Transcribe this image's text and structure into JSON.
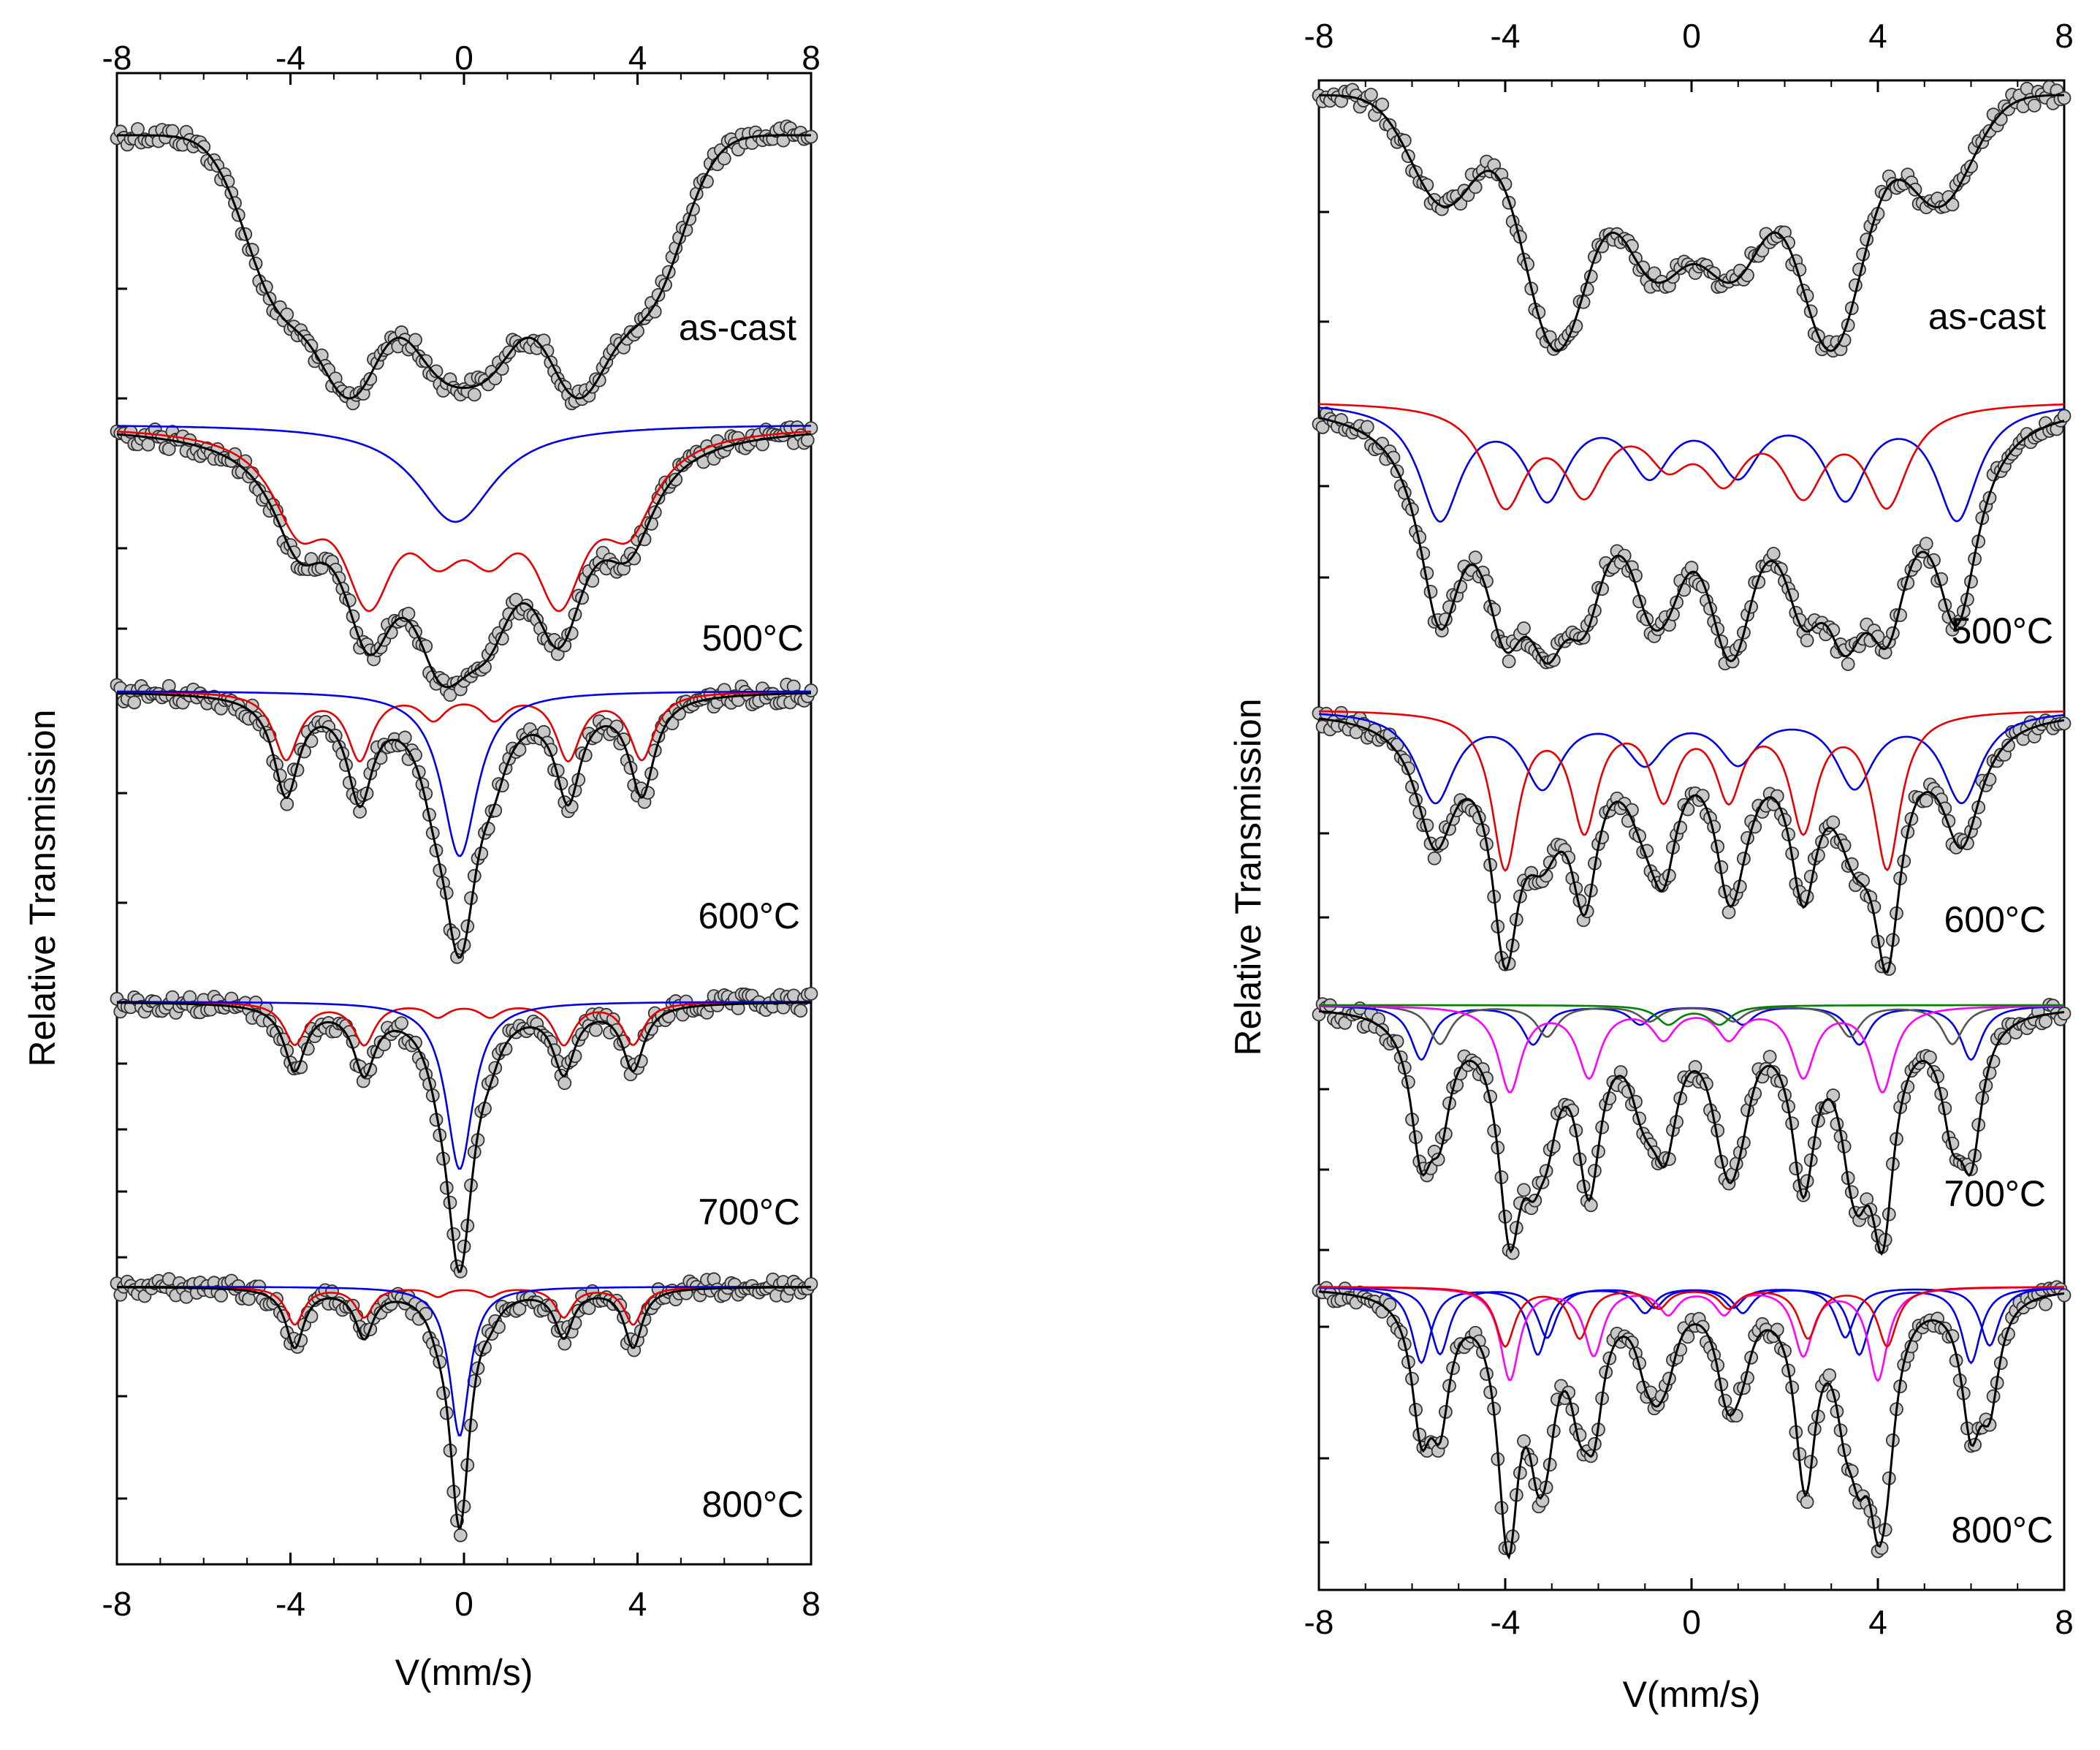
{
  "chart_data": [
    {
      "type": "scatter",
      "panel": "left",
      "xlabel": "V(mm/s)",
      "ylabel": "Relative Transmission",
      "xlim": [
        -8,
        8
      ],
      "xticks": [
        -8,
        -4,
        0,
        4,
        8
      ],
      "grid": false,
      "series_colors": {
        "data_points": "#c8c8c8",
        "total_fit": "#000000",
        "sextet": "#e60000",
        "singlet_doublet": "#0000e6"
      },
      "spectra": [
        {
          "label": "as-cast",
          "components": [
            {
              "name": "broad-hyperfine",
              "shape": "gaussian6",
              "color": "#000000",
              "positions": [
                -4.3,
                -2.6,
                -0.7,
                0.7,
                2.6,
                4.3
              ],
              "amplitudes": [
                0.45,
                0.7,
                0.55,
                0.55,
                0.7,
                0.45
              ],
              "width": 1.1
            }
          ],
          "include_total": false
        },
        {
          "label": "500°C",
          "components": [
            {
              "name": "sextet-red",
              "shape": "lorentz",
              "color": "#e60000",
              "positions": [
                -3.8,
                -2.2,
                -0.6,
                0.6,
                2.2,
                3.8
              ],
              "amplitudes": [
                0.5,
                0.9,
                0.5,
                0.5,
                0.9,
                0.5
              ],
              "width": 0.75
            },
            {
              "name": "broad-blue",
              "shape": "lorentz",
              "color": "#0000e6",
              "positions": [
                -0.2
              ],
              "amplitudes": [
                0.6
              ],
              "width": 1.1
            }
          ],
          "include_total": true
        },
        {
          "label": "600°C",
          "components": [
            {
              "name": "sextet-red",
              "shape": "lorentz",
              "color": "#e60000",
              "positions": [
                -4.1,
                -2.4,
                -0.7,
                0.7,
                2.4,
                4.1
              ],
              "amplitudes": [
                0.4,
                0.4,
                0.15,
                0.15,
                0.4,
                0.4
              ],
              "width": 0.35
            },
            {
              "name": "singlet-blue",
              "shape": "lorentz",
              "color": "#0000e6",
              "positions": [
                -0.1
              ],
              "amplitudes": [
                1.0
              ],
              "width": 0.5
            }
          ],
          "include_total": true
        },
        {
          "label": "700°C",
          "components": [
            {
              "name": "sextet-red",
              "shape": "lorentz",
              "color": "#e60000",
              "positions": [
                -3.9,
                -2.3,
                -0.6,
                0.6,
                2.3,
                3.9
              ],
              "amplitudes": [
                0.25,
                0.25,
                0.08,
                0.08,
                0.25,
                0.25
              ],
              "width": 0.3
            },
            {
              "name": "singlet-blue",
              "shape": "lorentz",
              "color": "#0000e6",
              "positions": [
                -0.1
              ],
              "amplitudes": [
                1.0
              ],
              "width": 0.38
            }
          ],
          "include_total": true
        },
        {
          "label": "800°C",
          "components": [
            {
              "name": "sextet-red",
              "shape": "lorentz",
              "color": "#e60000",
              "positions": [
                -3.9,
                -2.3,
                -0.6,
                0.6,
                2.3,
                3.9
              ],
              "amplitudes": [
                0.25,
                0.2,
                0.06,
                0.06,
                0.2,
                0.25
              ],
              "width": 0.25
            },
            {
              "name": "singlet-blue",
              "shape": "lorentz",
              "color": "#0000e6",
              "positions": [
                -0.1
              ],
              "amplitudes": [
                1.0
              ],
              "width": 0.28
            }
          ],
          "include_total": true
        }
      ]
    },
    {
      "type": "scatter",
      "panel": "right",
      "xlabel": "V(mm/s)",
      "ylabel": "Relative Transmission",
      "xlim": [
        -8,
        8
      ],
      "xticks": [
        -8,
        -4,
        0,
        4,
        8
      ],
      "grid": false,
      "series_colors": {
        "data_points": "#c8c8c8",
        "total_fit": "#000000",
        "sextet_a": "#e60000",
        "sextet_b": "#0000e6",
        "sextet_c": "#ff00ff",
        "sextet_d": "#555555",
        "doublet": "#008000"
      },
      "spectra": [
        {
          "label": "as-cast",
          "components": [
            {
              "name": "broad-hyperfine",
              "shape": "gaussian6",
              "color": "#000000",
              "positions": [
                -5.3,
                -2.9,
                -0.8,
                0.9,
                3.0,
                5.3
              ],
              "amplitudes": [
                0.35,
                0.8,
                0.55,
                0.55,
                0.8,
                0.35
              ],
              "width": 1.0
            }
          ],
          "include_total": false
        },
        {
          "label": "500°C",
          "components": [
            {
              "name": "sextet-blue",
              "shape": "lorentz",
              "color": "#0000e6",
              "positions": [
                -5.4,
                -3.1,
                -0.9,
                1.0,
                3.3,
                5.7
              ],
              "amplitudes": [
                0.7,
                0.55,
                0.4,
                0.4,
                0.55,
                0.7
              ],
              "width": 0.55
            },
            {
              "name": "sextet-red",
              "shape": "lorentz",
              "color": "#e60000",
              "positions": [
                -4.0,
                -2.3,
                0.7,
                2.4,
                4.2,
                -0.5
              ],
              "amplitudes": [
                0.6,
                0.5,
                0.4,
                0.5,
                0.6,
                0.3
              ],
              "width": 0.55
            }
          ],
          "include_total": true
        },
        {
          "label": "600°C",
          "components": [
            {
              "name": "sextet-blue",
              "shape": "lorentz",
              "color": "#0000e6",
              "positions": [
                -5.5,
                -3.2,
                -1.0,
                1.0,
                3.5,
                5.8
              ],
              "amplitudes": [
                0.55,
                0.45,
                0.3,
                0.3,
                0.45,
                0.55
              ],
              "width": 0.5
            },
            {
              "name": "sextet-red",
              "shape": "lorentz",
              "color": "#e60000",
              "positions": [
                -4.0,
                -2.3,
                -0.6,
                0.8,
                2.4,
                4.2
              ],
              "amplitudes": [
                0.95,
                0.7,
                0.5,
                0.5,
                0.7,
                0.95
              ],
              "width": 0.35
            }
          ],
          "include_total": true
        },
        {
          "label": "700°C",
          "components": [
            {
              "name": "sextet-blue",
              "shape": "lorentz",
              "color": "#0000e6",
              "positions": [
                -5.8,
                -3.4,
                -1.1,
                1.1,
                3.6,
                6.0
              ],
              "amplitudes": [
                0.35,
                0.25,
                0.12,
                0.12,
                0.25,
                0.35
              ],
              "width": 0.28
            },
            {
              "name": "sextet-grey",
              "shape": "lorentz",
              "color": "#555555",
              "positions": [
                -5.4,
                -3.1,
                -0.9,
                0.9,
                3.4,
                5.6
              ],
              "amplitudes": [
                0.25,
                0.2,
                0.1,
                0.1,
                0.2,
                0.25
              ],
              "width": 0.28
            },
            {
              "name": "sextet-magenta",
              "shape": "lorentz",
              "color": "#ff00ff",
              "positions": [
                -3.9,
                -2.2,
                -0.6,
                0.8,
                2.4,
                4.1
              ],
              "amplitudes": [
                0.55,
                0.45,
                0.2,
                0.2,
                0.45,
                0.55
              ],
              "width": 0.3
            },
            {
              "name": "doublet-green",
              "shape": "lorentz",
              "color": "#008000",
              "positions": [
                -0.5,
                0.6
              ],
              "amplitudes": [
                0.12,
                0.12
              ],
              "width": 0.3
            }
          ],
          "include_total": true
        },
        {
          "label": "800°C",
          "components": [
            {
              "name": "sextet-blue",
              "shape": "lorentz",
              "color": "#0000e6",
              "positions": [
                -5.8,
                -3.3,
                -1.0,
                1.1,
                3.6,
                6.0
              ],
              "amplitudes": [
                0.45,
                0.4,
                0.15,
                0.15,
                0.4,
                0.45
              ],
              "width": 0.25
            },
            {
              "name": "sextet-blue-2",
              "shape": "lorentz",
              "color": "#0000e6",
              "positions": [
                -5.4,
                -3.1,
                -0.8,
                0.9,
                3.3,
                6.4
              ],
              "amplitudes": [
                0.4,
                0.3,
                0.12,
                0.12,
                0.3,
                0.35
              ],
              "width": 0.25
            },
            {
              "name": "sextet-magenta",
              "shape": "lorentz",
              "color": "#ff00ff",
              "positions": [
                -3.9,
                -2.1,
                -0.5,
                0.7,
                2.4,
                4.0
              ],
              "amplitudes": [
                0.55,
                0.4,
                0.15,
                0.15,
                0.4,
                0.55
              ],
              "width": 0.25
            },
            {
              "name": "sextet-red",
              "shape": "lorentz",
              "color": "#e60000",
              "positions": [
                -4.0,
                -2.4,
                -0.7,
                0.8,
                2.5,
                4.2
              ],
              "amplitudes": [
                0.35,
                0.3,
                0.12,
                0.12,
                0.3,
                0.35
              ],
              "width": 0.25
            }
          ],
          "include_total": true
        }
      ]
    }
  ]
}
